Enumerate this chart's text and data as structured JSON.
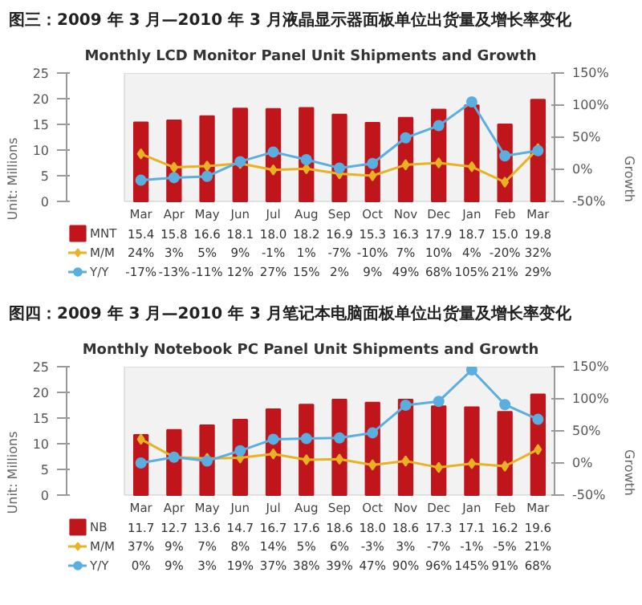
{
  "chart_data": [
    {
      "type": "bar",
      "title": "图三：2009 年 3 月—2010 年 3 月液晶显示器面板单位出货量及增长率变化",
      "subtitle": "Monthly LCD Monitor Panel Unit Shipments and Growth",
      "ylabel": "Unit: Millions",
      "y2label": "Growth",
      "legend": "bottom",
      "categories": [
        "Mar",
        "Apr",
        "May",
        "Jun",
        "Jul",
        "Aug",
        "Sep",
        "Oct",
        "Nov",
        "Dec",
        "Jan",
        "Feb",
        "Mar"
      ],
      "series": [
        {
          "name": "MNT",
          "color": "#c0161b",
          "values": [
            15.4,
            15.8,
            16.6,
            18.1,
            18.0,
            18.2,
            16.9,
            15.3,
            16.3,
            17.9,
            18.7,
            15.0,
            19.8
          ],
          "value_labels": [
            "15.4",
            "15.8",
            "16.6",
            "18.1",
            "18.0",
            "18.2",
            "16.9",
            "15.3",
            "16.3",
            "17.9",
            "18.7",
            "15.0",
            "19.8"
          ]
        },
        {
          "name": "M/M",
          "type": "line",
          "axis": "y2",
          "marker": "diamond",
          "color": "#e8b224",
          "values": [
            24,
            3,
            5,
            9,
            -1,
            1,
            -7,
            -10,
            7,
            10,
            4,
            -20,
            32
          ],
          "value_labels": [
            "24%",
            "3%",
            "5%",
            "9%",
            "-1%",
            "1%",
            "-7%",
            "-10%",
            "7%",
            "10%",
            "4%",
            "-20%",
            "32%"
          ]
        },
        {
          "name": "Y/Y",
          "type": "line",
          "axis": "y2",
          "marker": "circle",
          "color": "#5aaee0",
          "values": [
            -17,
            -13,
            -11,
            12,
            27,
            15,
            2,
            9,
            49,
            68,
            105,
            21,
            29
          ],
          "value_labels": [
            "-17%",
            "-13%",
            "-11%",
            "12%",
            "27%",
            "15%",
            "2%",
            "9%",
            "49%",
            "68%",
            "105%",
            "21%",
            "29%"
          ]
        }
      ],
      "ylim": [
        0,
        25
      ],
      "yticks": [
        0,
        5,
        10,
        15,
        20,
        25
      ],
      "y2lim": [
        -50,
        150
      ],
      "y2ticks": [
        {
          "value": -50,
          "label": "-50%"
        },
        {
          "value": 0,
          "label": "0%"
        },
        {
          "value": 50,
          "label": "50%"
        },
        {
          "value": 100,
          "label": "100%"
        },
        {
          "value": 150,
          "label": "150%"
        }
      ]
    },
    {
      "type": "bar",
      "title": "图四：2009 年 3 月—2010 年 3 月笔记本电脑面板单位出货量及增长率变化",
      "subtitle": "Monthly Notebook PC Panel Unit Shipments and Growth",
      "ylabel": "Unit: Millions",
      "y2label": "Growth",
      "legend": "bottom",
      "categories": [
        "Mar",
        "Apr",
        "May",
        "Jun",
        "Jul",
        "Aug",
        "Sep",
        "Oct",
        "Nov",
        "Dec",
        "Jan",
        "Feb",
        "Mar"
      ],
      "series": [
        {
          "name": "NB",
          "color": "#c0161b",
          "values": [
            11.7,
            12.7,
            13.6,
            14.7,
            16.7,
            17.6,
            18.6,
            18.0,
            18.6,
            17.3,
            17.1,
            16.2,
            19.6
          ],
          "value_labels": [
            "11.7",
            "12.7",
            "13.6",
            "14.7",
            "16.7",
            "17.6",
            "18.6",
            "18.0",
            "18.6",
            "17.3",
            "17.1",
            "16.2",
            "19.6"
          ]
        },
        {
          "name": "M/M",
          "type": "line",
          "axis": "y2",
          "marker": "diamond",
          "color": "#e8b224",
          "values": [
            37,
            9,
            7,
            8,
            14,
            5,
            6,
            -3,
            3,
            -7,
            -1,
            -5,
            21
          ],
          "value_labels": [
            "37%",
            "9%",
            "7%",
            "8%",
            "14%",
            "5%",
            "6%",
            "-3%",
            "3%",
            "-7%",
            "-1%",
            "-5%",
            "21%"
          ]
        },
        {
          "name": "Y/Y",
          "type": "line",
          "axis": "y2",
          "marker": "circle",
          "color": "#5aaee0",
          "values": [
            0,
            9,
            3,
            19,
            37,
            38,
            39,
            47,
            90,
            96,
            145,
            91,
            68
          ],
          "value_labels": [
            "0%",
            "9%",
            "3%",
            "19%",
            "37%",
            "38%",
            "39%",
            "47%",
            "90%",
            "96%",
            "145%",
            "91%",
            "68%"
          ]
        }
      ],
      "ylim": [
        0,
        25
      ],
      "yticks": [
        0,
        5,
        10,
        15,
        20,
        25
      ],
      "y2lim": [
        -50,
        150
      ],
      "y2ticks": [
        {
          "value": -50,
          "label": "-50%"
        },
        {
          "value": 0,
          "label": "0%"
        },
        {
          "value": 50,
          "label": "50%"
        },
        {
          "value": 100,
          "label": "100%"
        },
        {
          "value": 150,
          "label": "150%"
        }
      ]
    }
  ]
}
